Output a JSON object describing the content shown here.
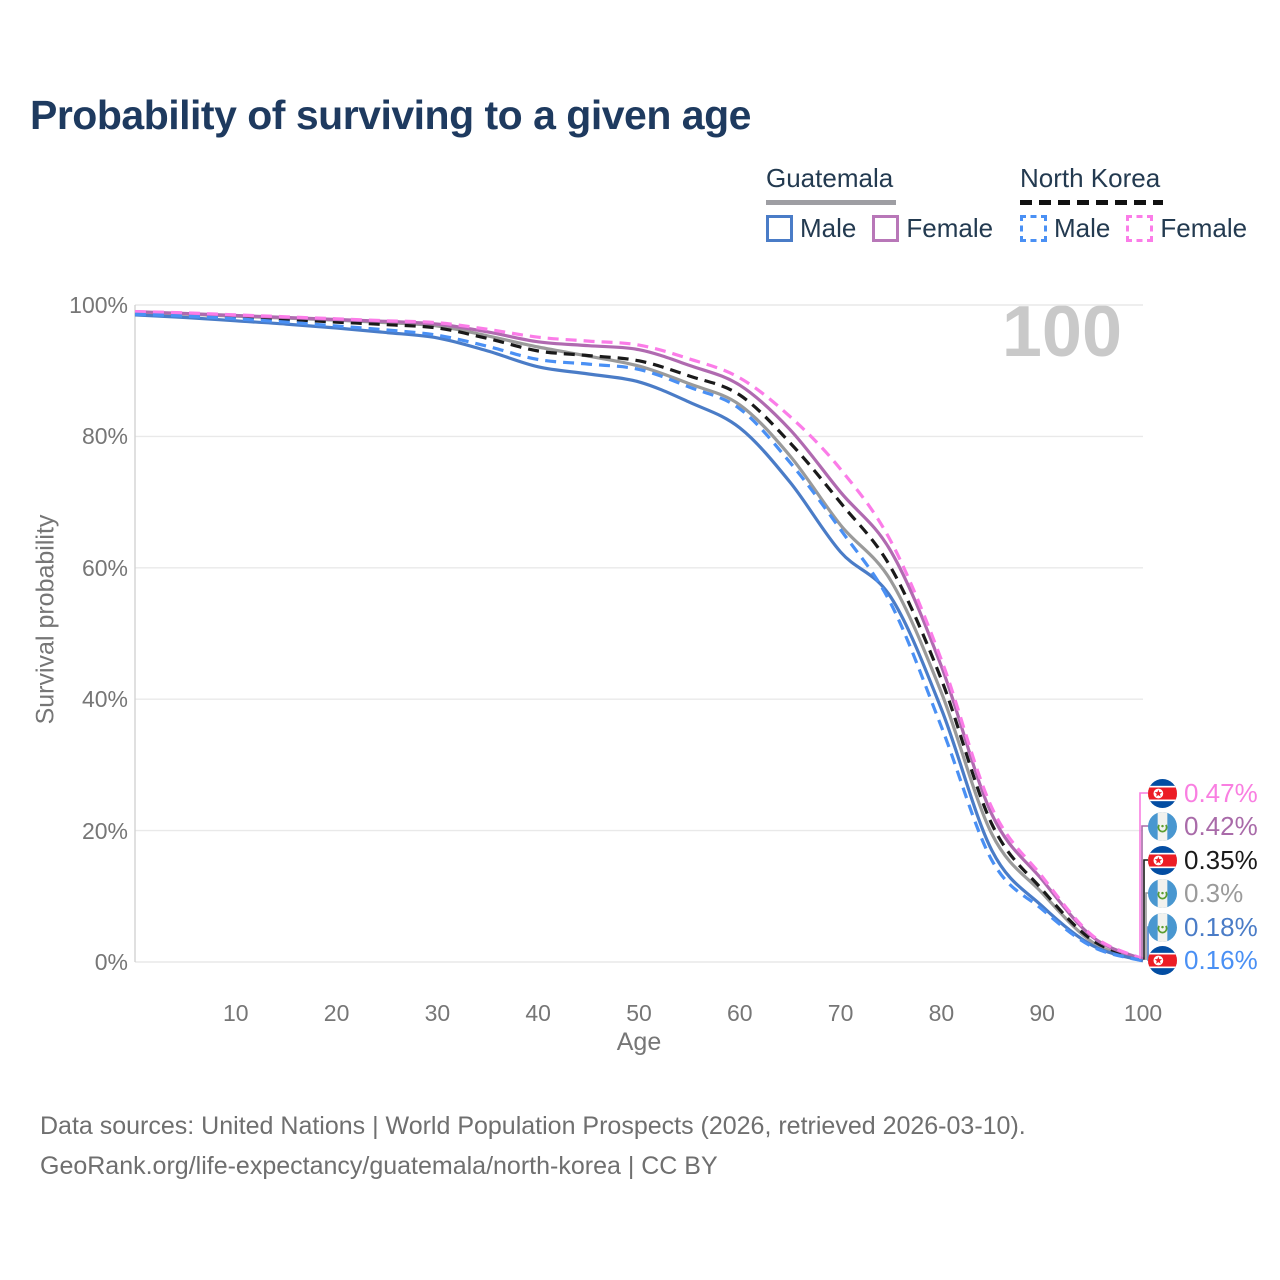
{
  "title": "Probability of surviving to a given age",
  "watermark_label": "100",
  "colors": {
    "title": "#1e3a5f",
    "legend_text": "#233a50",
    "axis_text": "#767676",
    "gridline": "#e9e9e9",
    "axis_line": "#d2d2d2",
    "watermark": "#c9c9c9",
    "footer_text": "#6f6f6f"
  },
  "legend": {
    "groups": [
      {
        "name": "Guatemala",
        "line_style": "solid",
        "underline_color": "#9e9ea3",
        "items": [
          {
            "label": "Male",
            "color": "#4a7cc7"
          },
          {
            "label": "Female",
            "color": "#b877b8"
          }
        ]
      },
      {
        "name": "North Korea",
        "line_style": "dashed",
        "underline_color": "#111111",
        "items": [
          {
            "label": "Male",
            "color": "#4a90f4"
          },
          {
            "label": "Female",
            "color": "#fb7ce8"
          }
        ]
      }
    ]
  },
  "chart_data": {
    "type": "line",
    "title": "Probability of surviving to a given age",
    "xlabel": "Age",
    "ylabel": "Survival probability",
    "xlim": [
      0,
      100
    ],
    "ylim": [
      0,
      100
    ],
    "grid": "horizontal",
    "legend_position": "top-right",
    "x_ticks": [
      10,
      20,
      30,
      40,
      50,
      60,
      70,
      80,
      90,
      100
    ],
    "y_ticks": [
      {
        "value": 0,
        "label": "0%"
      },
      {
        "value": 20,
        "label": "20%"
      },
      {
        "value": 40,
        "label": "40%"
      },
      {
        "value": 60,
        "label": "60%"
      },
      {
        "value": 80,
        "label": "80%"
      },
      {
        "value": 100,
        "label": "100%"
      }
    ],
    "x": [
      0,
      5,
      10,
      15,
      20,
      25,
      30,
      35,
      40,
      45,
      50,
      55,
      60,
      65,
      70,
      75,
      80,
      85,
      90,
      95,
      100
    ],
    "series": [
      {
        "name": "Guatemala Total",
        "country": "guatemala",
        "color": "#9a9a9a",
        "dash": "solid",
        "values": [
          98.8,
          98.6,
          98.3,
          98.0,
          97.7,
          97.3,
          96.8,
          95.3,
          93.6,
          92.2,
          90.7,
          88.0,
          84.8,
          77.0,
          66.5,
          58.0,
          41.0,
          19.5,
          10.5,
          3.0,
          0.3
        ],
        "end_label": "0.3%",
        "end_label_color": "#9b9b9b"
      },
      {
        "name": "North Korea Total",
        "country": "north-korea",
        "color": "#1a1a1a",
        "dash": "dashed",
        "values": [
          98.8,
          98.5,
          98.2,
          97.8,
          97.4,
          97.0,
          96.5,
          94.9,
          93.0,
          92.3,
          91.5,
          89.2,
          86.3,
          79.0,
          69.9,
          60.0,
          43.0,
          21.0,
          11.0,
          3.3,
          0.35
        ],
        "end_label": "0.35%",
        "end_label_color": "#1a1a1a"
      },
      {
        "name": "Guatemala Female",
        "country": "guatemala",
        "color": "#b06ab0",
        "dash": "solid",
        "values": [
          99.0,
          98.7,
          98.4,
          98.1,
          97.8,
          97.5,
          97.1,
          95.9,
          94.4,
          93.8,
          93.2,
          90.8,
          87.8,
          81.0,
          71.5,
          62.5,
          45.0,
          22.5,
          12.5,
          3.8,
          0.42
        ],
        "end_label": "0.42%",
        "end_label_color": "#a96ba9"
      },
      {
        "name": "North Korea Female",
        "country": "north-korea",
        "color": "#fb7ce8",
        "dash": "dashed",
        "values": [
          99.0,
          98.8,
          98.5,
          98.2,
          97.9,
          97.6,
          97.3,
          96.3,
          95.1,
          94.5,
          93.9,
          91.8,
          88.9,
          83.0,
          75.0,
          64.0,
          46.0,
          23.5,
          13.0,
          4.0,
          0.47
        ],
        "end_label": "0.47%",
        "end_label_color": "#f97fe1"
      },
      {
        "name": "Guatemala Male",
        "country": "guatemala",
        "color": "#4a7cc7",
        "dash": "solid",
        "values": [
          98.5,
          98.1,
          97.6,
          97.1,
          96.5,
          95.8,
          95.0,
          93.0,
          90.6,
          89.5,
          88.3,
          85.2,
          81.3,
          73.0,
          62.4,
          55.5,
          38.5,
          17.0,
          8.5,
          2.5,
          0.18
        ],
        "end_label": "0.18%",
        "end_label_color": "#4a7cc7"
      },
      {
        "name": "North Korea Male",
        "country": "north-korea",
        "color": "#4a90f4",
        "dash": "dashed",
        "values": [
          98.6,
          98.3,
          97.9,
          97.4,
          96.8,
          96.2,
          95.4,
          93.7,
          91.7,
          91.0,
          90.2,
          87.5,
          84.2,
          76.0,
          65.8,
          54.5,
          35.8,
          15.5,
          8.0,
          2.3,
          0.16
        ],
        "end_label": "0.16%",
        "end_label_color": "#4a90f4"
      }
    ]
  },
  "footer": {
    "line1": "Data sources: United Nations | World Population Prospects (2026, retrieved 2026-03-10).",
    "line2": "GeoRank.org/life-expectancy/guatemala/north-korea | CC BY"
  }
}
